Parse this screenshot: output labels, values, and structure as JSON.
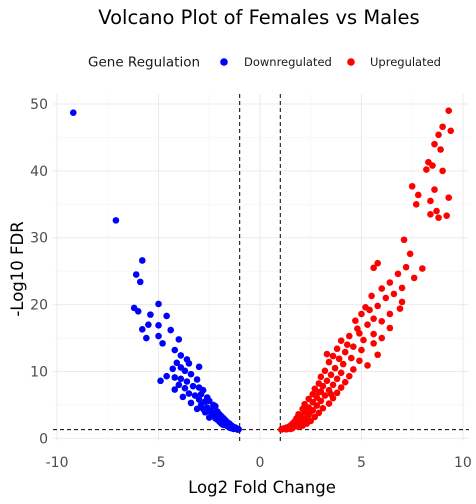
{
  "chart_data": {
    "type": "scatter",
    "title": "Volcano Plot of Females vs Males",
    "xlabel": "Log2 Fold Change",
    "ylabel": "-Log10 FDR",
    "xlim": [
      -10.2,
      10.3
    ],
    "ylim": [
      -0.4,
      51.5
    ],
    "xticks": [
      -10,
      -5,
      0,
      5,
      10
    ],
    "yticks": [
      0,
      10,
      20,
      30,
      40,
      50
    ],
    "grid": true,
    "legend": {
      "title": "Gene Regulation",
      "position": "top",
      "entries": [
        {
          "label": "Downregulated",
          "color": "#0000ff"
        },
        {
          "label": "Upregulated",
          "color": "#ff0000"
        }
      ]
    },
    "thresholds": {
      "x": [
        -1,
        1
      ],
      "y": 1.3
    },
    "series": [
      {
        "name": "Downregulated",
        "color": "#0000ff",
        "points": [
          [
            -9.2,
            48.7
          ],
          [
            -7.1,
            32.6
          ],
          [
            -5.8,
            26.6
          ],
          [
            -6.1,
            24.5
          ],
          [
            -5.9,
            23.4
          ],
          [
            -6.2,
            19.5
          ],
          [
            -6.0,
            19.0
          ],
          [
            -5.0,
            20.1
          ],
          [
            -5.4,
            18.5
          ],
          [
            -4.6,
            18.3
          ],
          [
            -5.5,
            17.0
          ],
          [
            -5.0,
            16.9
          ],
          [
            -4.4,
            16.2
          ],
          [
            -5.0,
            15.3
          ],
          [
            -5.8,
            16.3
          ],
          [
            -5.6,
            15.0
          ],
          [
            -4.8,
            14.2
          ],
          [
            -4.0,
            14.8
          ],
          [
            -4.2,
            13.2
          ],
          [
            -3.9,
            12.4
          ],
          [
            -3.6,
            11.8
          ],
          [
            -4.1,
            11.3
          ],
          [
            -3.9,
            10.6
          ],
          [
            -3.5,
            11.2
          ],
          [
            -3.7,
            10.1
          ],
          [
            -4.3,
            10.4
          ],
          [
            -3.4,
            9.6
          ],
          [
            -3.0,
            10.7
          ],
          [
            -4.6,
            9.3
          ],
          [
            -4.2,
            9.1
          ],
          [
            -4.9,
            8.6
          ],
          [
            -3.9,
            8.9
          ],
          [
            -3.6,
            8.5
          ],
          [
            -3.1,
            8.8
          ],
          [
            -4.0,
            8.0
          ],
          [
            -3.3,
            7.8
          ],
          [
            -3.0,
            7.6
          ],
          [
            -3.7,
            7.5
          ],
          [
            -2.8,
            7.2
          ],
          [
            -4.2,
            7.3
          ],
          [
            -3.5,
            6.7
          ],
          [
            -3.2,
            6.4
          ],
          [
            -2.9,
            6.6
          ],
          [
            -2.6,
            6.1
          ],
          [
            -3.8,
            6.2
          ],
          [
            -3.0,
            5.8
          ],
          [
            -2.7,
            5.5
          ],
          [
            -3.4,
            5.3
          ],
          [
            -2.5,
            5.6
          ],
          [
            -2.3,
            5.0
          ],
          [
            -2.9,
            5.0
          ],
          [
            -2.6,
            4.6
          ],
          [
            -2.2,
            4.8
          ],
          [
            -3.1,
            4.4
          ],
          [
            -2.4,
            4.2
          ],
          [
            -2.1,
            4.0
          ],
          [
            -2.7,
            3.9
          ],
          [
            -2.0,
            3.6
          ],
          [
            -2.3,
            3.4
          ],
          [
            -1.9,
            3.3
          ],
          [
            -2.5,
            3.1
          ],
          [
            -1.8,
            3.0
          ],
          [
            -2.1,
            2.8
          ],
          [
            -1.7,
            2.7
          ],
          [
            -2.0,
            2.5
          ],
          [
            -1.6,
            2.4
          ],
          [
            -1.9,
            2.2
          ],
          [
            -1.5,
            2.2
          ],
          [
            -1.8,
            2.0
          ],
          [
            -1.4,
            1.9
          ],
          [
            -1.6,
            1.8
          ],
          [
            -1.3,
            1.7
          ],
          [
            -1.5,
            1.6
          ],
          [
            -1.2,
            1.6
          ],
          [
            -1.4,
            1.5
          ],
          [
            -1.1,
            1.4
          ],
          [
            -1.3,
            1.4
          ],
          [
            -1.05,
            1.35
          ],
          [
            -2.2,
            3.0
          ],
          [
            -1.7,
            2.0
          ],
          [
            -2.8,
            4.4
          ],
          [
            -2.4,
            3.8
          ],
          [
            -1.2,
            1.5
          ],
          [
            -1.1,
            1.3
          ]
        ]
      },
      {
        "name": "Upregulated",
        "color": "#ff0000",
        "points": [
          [
            9.3,
            49.0
          ],
          [
            9.0,
            46.6
          ],
          [
            8.8,
            45.4
          ],
          [
            9.4,
            46.0
          ],
          [
            8.6,
            44.0
          ],
          [
            8.9,
            43.2
          ],
          [
            8.3,
            41.3
          ],
          [
            8.5,
            40.8
          ],
          [
            8.2,
            40.2
          ],
          [
            9.0,
            40.0
          ],
          [
            7.5,
            37.7
          ],
          [
            8.6,
            37.2
          ],
          [
            7.8,
            36.4
          ],
          [
            8.4,
            35.5
          ],
          [
            7.7,
            35.0
          ],
          [
            9.3,
            36.0
          ],
          [
            8.7,
            34.0
          ],
          [
            8.8,
            33.0
          ],
          [
            9.2,
            33.3
          ],
          [
            8.4,
            33.5
          ],
          [
            7.1,
            29.7
          ],
          [
            7.4,
            27.6
          ],
          [
            7.2,
            25.6
          ],
          [
            8.0,
            25.4
          ],
          [
            7.6,
            24.0
          ],
          [
            5.8,
            26.2
          ],
          [
            5.6,
            25.5
          ],
          [
            6.8,
            24.6
          ],
          [
            6.4,
            23.3
          ],
          [
            6.0,
            22.4
          ],
          [
            7.0,
            22.5
          ],
          [
            6.6,
            21.6
          ],
          [
            5.5,
            21.3
          ],
          [
            6.2,
            21.0
          ],
          [
            7.0,
            20.4
          ],
          [
            5.8,
            19.8
          ],
          [
            6.9,
            19.4
          ],
          [
            5.2,
            19.6
          ],
          [
            6.4,
            18.6
          ],
          [
            5.0,
            18.6
          ],
          [
            5.6,
            17.9
          ],
          [
            6.0,
            17.5
          ],
          [
            4.7,
            17.6
          ],
          [
            5.3,
            17.0
          ],
          [
            6.4,
            16.5
          ],
          [
            4.9,
            15.7
          ],
          [
            5.6,
            15.6
          ],
          [
            4.4,
            15.3
          ],
          [
            6.0,
            15.0
          ],
          [
            5.1,
            14.7
          ],
          [
            4.0,
            14.6
          ],
          [
            5.6,
            14.2
          ],
          [
            4.6,
            13.7
          ],
          [
            3.8,
            13.4
          ],
          [
            5.0,
            13.2
          ],
          [
            4.2,
            12.9
          ],
          [
            5.8,
            12.5
          ],
          [
            3.6,
            12.3
          ],
          [
            4.5,
            12.0
          ],
          [
            4.9,
            11.6
          ],
          [
            3.4,
            11.4
          ],
          [
            4.1,
            11.1
          ],
          [
            5.3,
            10.9
          ],
          [
            3.7,
            10.5
          ],
          [
            4.6,
            10.3
          ],
          [
            3.2,
            10.1
          ],
          [
            4.0,
            9.8
          ],
          [
            3.5,
            9.5
          ],
          [
            4.4,
            9.3
          ],
          [
            3.0,
            9.2
          ],
          [
            3.8,
            8.9
          ],
          [
            3.3,
            8.6
          ],
          [
            4.2,
            8.4
          ],
          [
            2.9,
            8.2
          ],
          [
            3.6,
            8.0
          ],
          [
            3.1,
            7.8
          ],
          [
            4.0,
            7.6
          ],
          [
            2.7,
            7.4
          ],
          [
            3.4,
            7.2
          ],
          [
            2.9,
            6.9
          ],
          [
            3.8,
            6.8
          ],
          [
            2.6,
            6.6
          ],
          [
            3.2,
            6.4
          ],
          [
            2.8,
            6.1
          ],
          [
            3.6,
            6.0
          ],
          [
            2.4,
            5.9
          ],
          [
            3.0,
            5.6
          ],
          [
            2.6,
            5.4
          ],
          [
            3.4,
            5.2
          ],
          [
            2.2,
            5.1
          ],
          [
            2.8,
            4.9
          ],
          [
            2.4,
            4.6
          ],
          [
            3.1,
            4.5
          ],
          [
            2.1,
            4.4
          ],
          [
            2.6,
            4.2
          ],
          [
            2.2,
            3.9
          ],
          [
            2.9,
            3.8
          ],
          [
            1.9,
            3.6
          ],
          [
            2.4,
            3.5
          ],
          [
            2.0,
            3.3
          ],
          [
            2.7,
            3.2
          ],
          [
            1.8,
            3.0
          ],
          [
            2.2,
            2.9
          ],
          [
            1.9,
            2.7
          ],
          [
            2.5,
            2.6
          ],
          [
            1.7,
            2.5
          ],
          [
            2.0,
            2.3
          ],
          [
            1.6,
            2.2
          ],
          [
            2.3,
            2.2
          ],
          [
            1.8,
            2.0
          ],
          [
            1.5,
            1.9
          ],
          [
            2.1,
            1.9
          ],
          [
            1.7,
            1.8
          ],
          [
            1.4,
            1.7
          ],
          [
            1.9,
            1.7
          ],
          [
            1.3,
            1.6
          ],
          [
            1.6,
            1.5
          ],
          [
            1.2,
            1.5
          ],
          [
            1.5,
            1.4
          ],
          [
            1.1,
            1.4
          ],
          [
            1.3,
            1.35
          ],
          [
            1.05,
            1.32
          ],
          [
            3.3,
            12.6
          ],
          [
            4.3,
            14.0
          ],
          [
            3.9,
            11.9
          ],
          [
            3.0,
            7.0
          ],
          [
            2.5,
            4.0
          ],
          [
            3.5,
            6.6
          ],
          [
            4.8,
            16.4
          ],
          [
            5.4,
            19.2
          ],
          [
            2.3,
            3.0
          ],
          [
            1.4,
            1.5
          ],
          [
            1.2,
            1.4
          ]
        ]
      }
    ]
  }
}
